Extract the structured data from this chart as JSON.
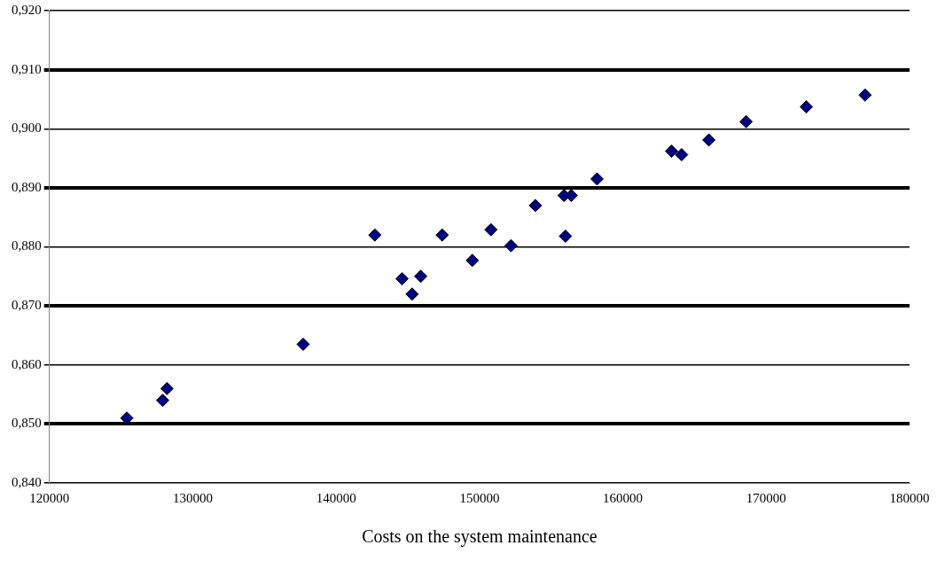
{
  "chart_data": {
    "type": "scatter",
    "xlabel": "Costs on the system maintenance",
    "x": [
      125400,
      127900,
      128200,
      137700,
      142700,
      144600,
      145300,
      145900,
      147400,
      149500,
      150800,
      152200,
      153900,
      155900,
      156000,
      156400,
      158200,
      163400,
      164100,
      166000,
      168600,
      172800,
      176900
    ],
    "series": [
      {
        "color": "#000080",
        "values": [
          0.851,
          0.854,
          0.856,
          0.8635,
          0.882,
          0.8746,
          0.872,
          0.875,
          0.882,
          0.8777,
          0.8829,
          0.8802,
          0.887,
          0.8887,
          0.8818,
          0.8887,
          0.8915,
          0.8962,
          0.8956,
          0.8981,
          0.9012,
          0.9037,
          0.9057
        ]
      }
    ],
    "xlim": [
      120000,
      180000
    ],
    "xticks": [
      120000,
      130000,
      140000,
      150000,
      160000,
      170000,
      180000
    ],
    "ylim": [
      0.84,
      0.92
    ],
    "yticks": [
      {
        "value": 0.84,
        "label": "0,840"
      },
      {
        "value": 0.85,
        "label": "0,850"
      },
      {
        "value": 0.86,
        "label": "0,860"
      },
      {
        "value": 0.87,
        "label": "0,870"
      },
      {
        "value": 0.88,
        "label": "0,880"
      },
      {
        "value": 0.89,
        "label": "0,890"
      },
      {
        "value": 0.9,
        "label": "0,900"
      },
      {
        "value": 0.91,
        "label": "0,910"
      },
      {
        "value": 0.92,
        "label": "0,920"
      }
    ],
    "grid": "y",
    "legend": false,
    "marker": "diamond"
  }
}
